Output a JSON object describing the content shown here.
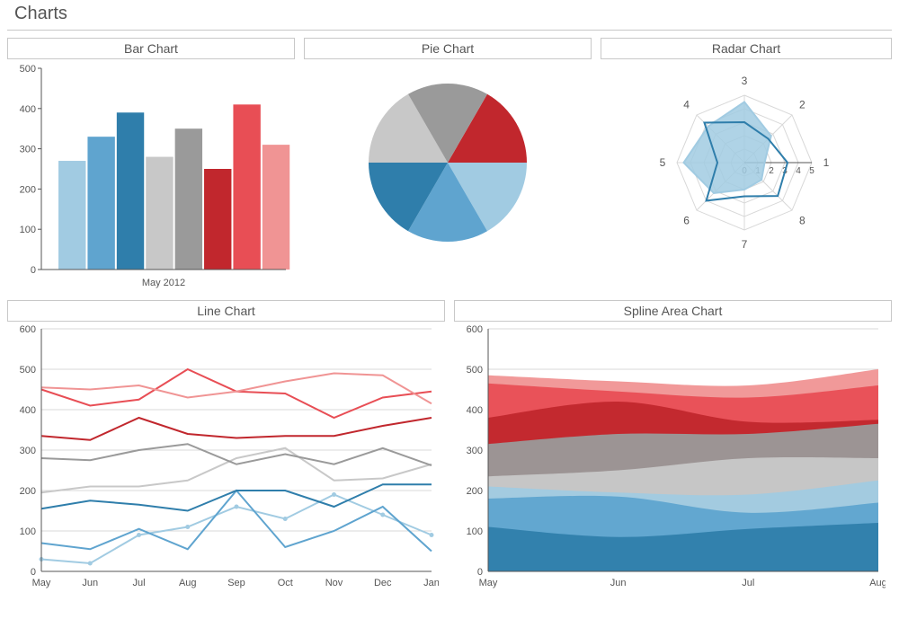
{
  "page": {
    "title": "Charts"
  },
  "palette": {
    "blue_light": "#a1cbe2",
    "blue_mid": "#5fa4cf",
    "blue_dark": "#2f7eab",
    "gray_light": "#c8c8c8",
    "gray_mid": "#9a9a9a",
    "gray_dark": "#7c7c7c",
    "red_dark": "#c1272d",
    "red_mid": "#e84e55",
    "red_light": "#f09494",
    "text": "#555555",
    "grid": "#d8d8d8",
    "border": "#c8c8c8",
    "bg": "#ffffff"
  },
  "bar_chart": {
    "title": "Bar Chart",
    "type": "bar",
    "x_label": "May 2012",
    "ylim": [
      0,
      500
    ],
    "ytick_step": 100,
    "values": [
      270,
      330,
      390,
      280,
      350,
      250,
      410,
      310
    ],
    "colors": [
      "#a1cbe2",
      "#5fa4cf",
      "#2f7eab",
      "#c8c8c8",
      "#9a9a9a",
      "#c1272d",
      "#e84e55",
      "#f09494"
    ],
    "label_fontsize": 11
  },
  "pie_chart": {
    "title": "Pie Chart",
    "type": "pie",
    "slices": [
      {
        "value": 60,
        "color": "#c1272d"
      },
      {
        "value": 60,
        "color": "#a1cbe2"
      },
      {
        "value": 60,
        "color": "#5fa4cf"
      },
      {
        "value": 60,
        "color": "#2f7eab"
      },
      {
        "value": 60,
        "color": "#c8c8c8"
      },
      {
        "value": 60,
        "color": "#9a9a9a"
      }
    ]
  },
  "radar_chart": {
    "title": "Radar Chart",
    "type": "radar",
    "axis_labels": [
      "1",
      "2",
      "3",
      "4",
      "5",
      "6",
      "7",
      "8"
    ],
    "rings": 5,
    "ring_labels": [
      "0",
      "1",
      "2",
      "3",
      "4",
      "5"
    ],
    "series": [
      {
        "values": [
          1.5,
          2.8,
          4.5,
          3.8,
          4.5,
          3.2,
          2.0,
          1.8
        ],
        "fill": "#a1cbe2",
        "stroke": "#a1cbe2",
        "opacity": 0.85
      },
      {
        "values": [
          3.2,
          2.5,
          3.0,
          4.2,
          2.0,
          4.0,
          2.5,
          3.5
        ],
        "fill": "none",
        "stroke": "#2f7eab",
        "opacity": 1
      }
    ],
    "label_fontsize": 12
  },
  "line_chart": {
    "title": "Line Chart",
    "type": "line",
    "x_labels": [
      "May",
      "Jun",
      "Jul",
      "Aug",
      "Sep",
      "Oct",
      "Nov",
      "Dec",
      "Jan"
    ],
    "ylim": [
      0,
      600
    ],
    "ytick_step": 100,
    "series": [
      {
        "color": "#a1cbe2",
        "values": [
          30,
          20,
          90,
          110,
          160,
          130,
          190,
          140,
          90
        ],
        "markers": true
      },
      {
        "color": "#5fa4cf",
        "values": [
          70,
          55,
          105,
          55,
          200,
          60,
          100,
          160,
          50
        ],
        "markers": false
      },
      {
        "color": "#2f7eab",
        "values": [
          155,
          175,
          165,
          150,
          200,
          200,
          160,
          215,
          215
        ],
        "markers": false
      },
      {
        "color": "#c8c8c8",
        "values": [
          195,
          210,
          210,
          225,
          280,
          305,
          225,
          230,
          265
        ],
        "markers": false
      },
      {
        "color": "#9a9a9a",
        "values": [
          280,
          275,
          300,
          315,
          265,
          290,
          265,
          305,
          262
        ],
        "markers": false
      },
      {
        "color": "#c1272d",
        "values": [
          335,
          325,
          380,
          340,
          330,
          335,
          335,
          360,
          380
        ],
        "markers": false
      },
      {
        "color": "#e84e55",
        "values": [
          450,
          410,
          425,
          500,
          445,
          440,
          380,
          430,
          445
        ],
        "markers": false
      },
      {
        "color": "#f09494",
        "values": [
          455,
          450,
          460,
          430,
          445,
          470,
          490,
          485,
          415
        ],
        "markers": false
      }
    ]
  },
  "area_chart": {
    "title": "Spline Area Chart",
    "type": "area",
    "x_labels": [
      "May",
      "Jun",
      "Jul",
      "Aug"
    ],
    "ylim": [
      0,
      600
    ],
    "ytick_step": 100,
    "layers": [
      {
        "color": "#2f7eab",
        "values": [
          110,
          85,
          105,
          120
        ]
      },
      {
        "color": "#5fa4cf",
        "values": [
          180,
          185,
          145,
          170
        ]
      },
      {
        "color": "#a1cbe2",
        "values": [
          210,
          195,
          190,
          225
        ]
      },
      {
        "color": "#c8c8c8",
        "values": [
          235,
          250,
          280,
          280
        ]
      },
      {
        "color": "#9a9a9a",
        "values": [
          315,
          340,
          340,
          365
        ]
      },
      {
        "color": "#c1272d",
        "values": [
          380,
          420,
          370,
          375
        ]
      },
      {
        "color": "#e84e55",
        "values": [
          465,
          445,
          430,
          460
        ]
      },
      {
        "color": "#f09494",
        "values": [
          485,
          470,
          460,
          500
        ]
      }
    ]
  }
}
